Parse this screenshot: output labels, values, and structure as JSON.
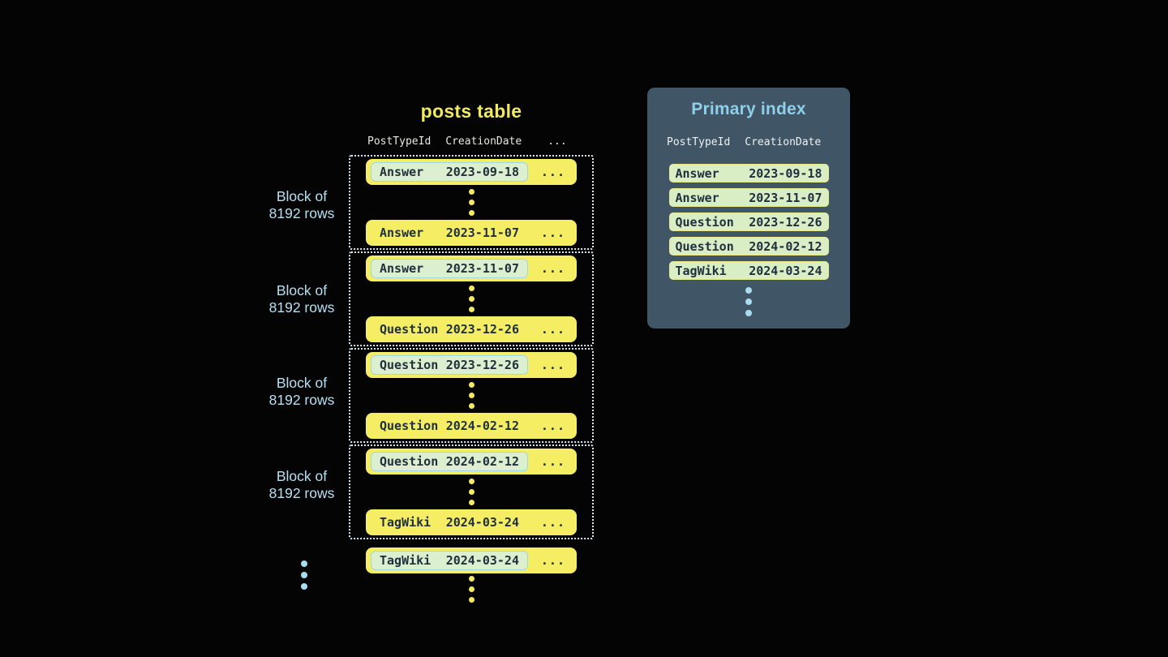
{
  "posts_table": {
    "title": "posts table",
    "columns": [
      "PostTypeId",
      "CreationDate",
      "..."
    ],
    "block_label": {
      "line1": "Block of",
      "line2": "8192 rows"
    },
    "blocks": [
      {
        "first": {
          "type": "Answer",
          "date": "2023-09-18"
        },
        "last": {
          "type": "Answer",
          "date": "2023-11-07"
        }
      },
      {
        "first": {
          "type": "Answer",
          "date": "2023-11-07"
        },
        "last": {
          "type": "Question",
          "date": "2023-12-26"
        }
      },
      {
        "first": {
          "type": "Question",
          "date": "2023-12-26"
        },
        "last": {
          "type": "Question",
          "date": "2024-02-12"
        }
      },
      {
        "first": {
          "type": "Question",
          "date": "2024-02-12"
        },
        "last": {
          "type": "TagWiki",
          "date": "2024-03-24"
        }
      }
    ],
    "overflow_row": {
      "type": "TagWiki",
      "date": "2024-03-24"
    },
    "row_ellipsis": "..."
  },
  "primary_index": {
    "title": "Primary index",
    "columns": [
      "PostTypeId",
      "CreationDate"
    ],
    "rows": [
      {
        "type": "Answer",
        "date": "2023-09-18"
      },
      {
        "type": "Answer",
        "date": "2023-11-07"
      },
      {
        "type": "Question",
        "date": "2023-12-26"
      },
      {
        "type": "Question",
        "date": "2024-02-12"
      },
      {
        "type": "TagWiki",
        "date": "2024-03-24"
      }
    ]
  },
  "colors": {
    "background": "#040404",
    "row_yellow": "#f5ee65",
    "title_yellow": "#f1ea5e",
    "dark_text": "#20303e",
    "highlight_pill_fill": "#dcefcf",
    "highlight_pill_border": "#9fd6e8",
    "index_pill_fill": "#daeec6",
    "index_pill_border": "#e7eb8e",
    "panel_background": "#405565",
    "panel_title_blue": "#8ecfea",
    "label_light_blue": "#b5e0f2",
    "dotted_block_border": "#d9ecf4",
    "header_text": "#e7e9e3"
  }
}
